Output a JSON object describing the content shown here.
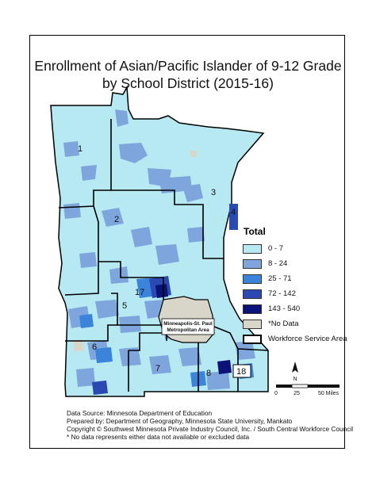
{
  "map": {
    "title_line1": "Enrollment of Asian/Pacific Islander of 9-12 Grade",
    "title_line2": "by School District (2015-16)",
    "colors": {
      "c0_7": "#b6e9f1",
      "c8_24": "#7fa6dc",
      "c25_71": "#3a84dc",
      "c72_142": "#2a49b3",
      "c143_540": "#0c1378",
      "no_data": "#d8d5c9"
    },
    "regions": [
      {
        "label": "1"
      },
      {
        "label": "2"
      },
      {
        "label": "3"
      },
      {
        "label": "4"
      },
      {
        "label": "5"
      },
      {
        "label": "6"
      },
      {
        "label": "7"
      },
      {
        "label": "8"
      },
      {
        "label": "17"
      },
      {
        "label": "18"
      }
    ],
    "metro_label_line1": "Minneapolis-St. Paul",
    "metro_label_line2": "Metropolitan Area"
  },
  "legend": {
    "title": "Total",
    "items": [
      {
        "label": "0 - 7",
        "color": "#b6e9f1"
      },
      {
        "label": "8 - 24",
        "color": "#7fa6dc"
      },
      {
        "label": "25 - 71",
        "color": "#3a84dc"
      },
      {
        "label": "72 - 142",
        "color": "#2a49b3"
      },
      {
        "label": "143 - 540",
        "color": "#0c1378"
      },
      {
        "label": "*No Data",
        "color": "#d8d5c9"
      }
    ],
    "wsa_label": "Workforce Service Area"
  },
  "scale": {
    "labels": [
      "0",
      "25",
      "50 Miles"
    ],
    "north": "N"
  },
  "notes": {
    "source": "Data Source: Minnesota Department of Education",
    "prepared": "Prepared by: Department of Geography, Minnesota State University, Mankato",
    "copyright": "Copyright © Southwest Minnesota Private Industry Council, Inc. / South Central Workforce Council",
    "nodata": "* No data represents either data not available or excluded data"
  }
}
